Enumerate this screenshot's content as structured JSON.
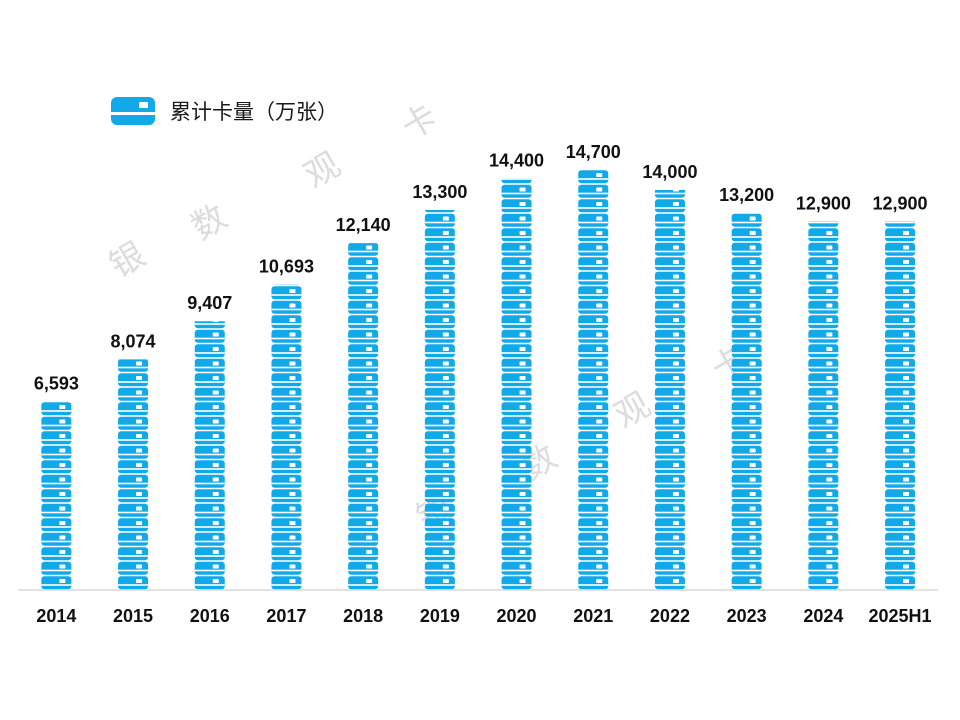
{
  "legend": {
    "label": "累计卡量（万张）",
    "icon": "bank-card-icon"
  },
  "watermark": {
    "chars": [
      "银",
      "数",
      "观",
      "卡"
    ]
  },
  "colors": {
    "card": "#12a9e8",
    "card_stripe": "#ffffff",
    "axis": "#d9d9d9",
    "text": "#111111",
    "watermark": "#dcdcdc"
  },
  "chart_data": {
    "type": "bar",
    "categories": [
      "2014",
      "2015",
      "2016",
      "2017",
      "2018",
      "2019",
      "2020",
      "2021",
      "2022",
      "2023",
      "2024",
      "2025H1"
    ],
    "series": [
      {
        "name": "累计卡量（万张）",
        "values": [
          6593,
          8074,
          9407,
          10693,
          12140,
          13300,
          14400,
          14700,
          14000,
          13200,
          12900,
          12900
        ]
      }
    ],
    "value_labels": [
      "6,593",
      "8,074",
      "9,407",
      "10,693",
      "12,140",
      "13,300",
      "14,400",
      "14,700",
      "14,000",
      "13,200",
      "12,900",
      "12,900"
    ],
    "ylim": [
      0,
      14700
    ],
    "grid": false,
    "legend_position": "top-left",
    "style": "pictograph stacked card icons"
  }
}
